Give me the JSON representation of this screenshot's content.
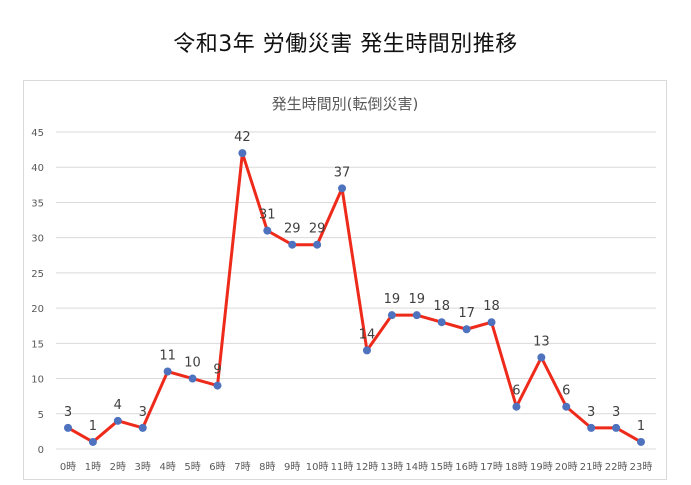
{
  "page": {
    "title": "令和3年  労働災害  発生時間別推移"
  },
  "chart_data": {
    "type": "line",
    "title": "発生時間別(転倒災害)",
    "xlabel": "",
    "ylabel": "",
    "categories": [
      "0時",
      "1時",
      "2時",
      "3時",
      "4時",
      "5時",
      "6時",
      "7時",
      "8時",
      "9時",
      "10時",
      "11時",
      "12時",
      "13時",
      "14時",
      "15時",
      "16時",
      "17時",
      "18時",
      "19時",
      "20時",
      "21時",
      "22時",
      "23時"
    ],
    "series": [
      {
        "name": "転倒災害",
        "values": [
          3,
          1,
          4,
          3,
          11,
          10,
          9,
          42,
          31,
          29,
          29,
          37,
          14,
          19,
          19,
          18,
          17,
          18,
          6,
          13,
          6,
          3,
          3,
          1
        ]
      }
    ],
    "ylim": [
      0,
      45
    ],
    "yticks": [
      0,
      5,
      10,
      15,
      20,
      25,
      30,
      35,
      40,
      45
    ],
    "grid": true,
    "data_labels": true,
    "legend": "none",
    "colors": {
      "line": "#ee2a1b",
      "marker": "#4f72be",
      "grid": "#d9d9d9"
    }
  }
}
